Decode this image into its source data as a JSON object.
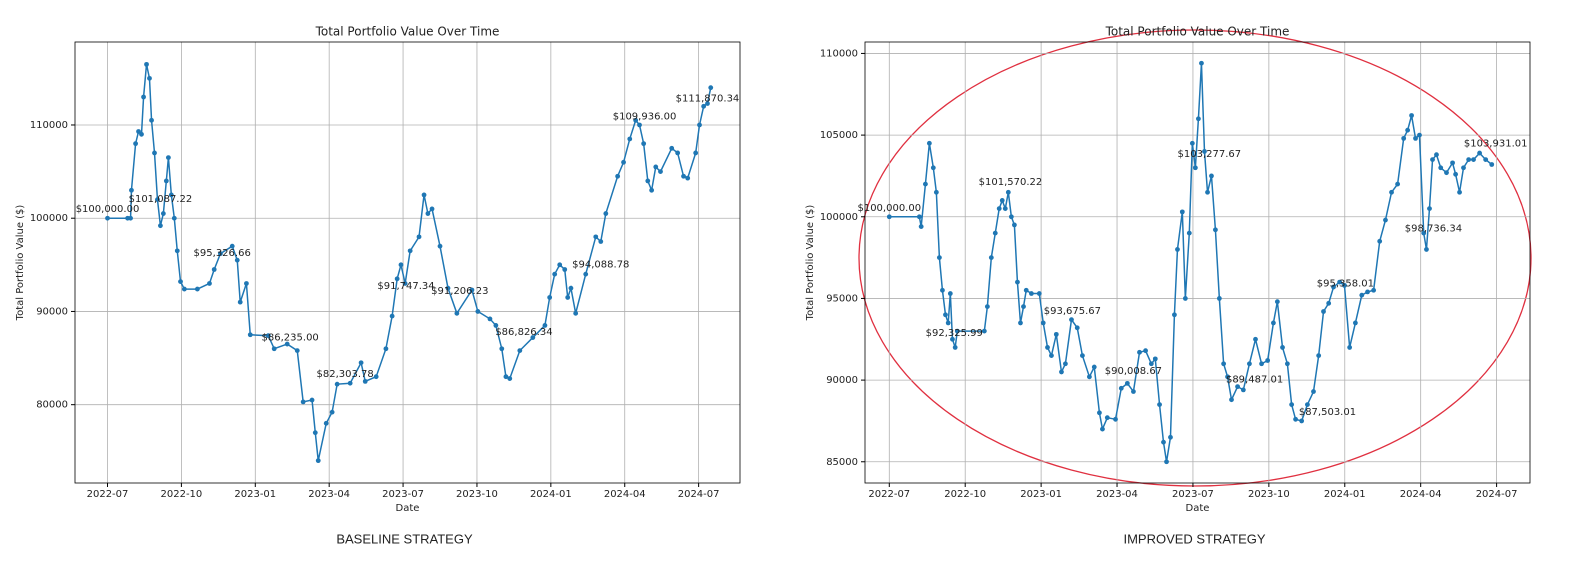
{
  "chart_data": [
    {
      "type": "line",
      "title": "Total Portfolio Value Over Time",
      "xlabel": "Date",
      "ylabel": "Total Portfolio Value ($)",
      "caption": "BASELINE STRATEGY",
      "color": "#1f77b4",
      "grid": true,
      "xlim": [
        2022.39,
        2024.64
      ],
      "ylim": [
        71600,
        118900
      ],
      "xticks": [
        {
          "value": 2022.5,
          "label": "2022-07"
        },
        {
          "value": 2022.75,
          "label": "2022-10"
        },
        {
          "value": 2023,
          "label": "2023-01"
        },
        {
          "value": 2023.25,
          "label": "2023-04"
        },
        {
          "value": 2023.5,
          "label": "2023-07"
        },
        {
          "value": 2023.75,
          "label": "2023-10"
        },
        {
          "value": 2024,
          "label": "2024-01"
        },
        {
          "value": 2024.25,
          "label": "2024-04"
        },
        {
          "value": 2024.5,
          "label": "2024-07"
        }
      ],
      "yticks": [
        80000,
        90000,
        100000,
        110000
      ],
      "x": [
        2022.5,
        2022.568,
        2022.578,
        2022.581,
        2022.595,
        2022.605,
        2022.615,
        2022.622,
        2022.632,
        2022.642,
        2022.649,
        2022.659,
        2022.669,
        2022.679,
        2022.689,
        2022.699,
        2022.706,
        2022.716,
        2022.726,
        2022.736,
        2022.747,
        2022.76,
        2022.804,
        2022.845,
        2022.861,
        2022.882,
        2022.922,
        2022.939,
        2022.949,
        2022.97,
        2022.983,
        2023.044,
        2023.064,
        2023.108,
        2023.142,
        2023.162,
        2023.192,
        2023.203,
        2023.213,
        2023.24,
        2023.26,
        2023.277,
        2023.321,
        2023.358,
        2023.372,
        2023.409,
        2023.442,
        2023.463,
        2023.48,
        2023.493,
        2023.507,
        2023.524,
        2023.554,
        2023.571,
        2023.584,
        2023.598,
        2023.625,
        2023.652,
        2023.682,
        2023.733,
        2023.753,
        2023.794,
        2023.814,
        2023.834,
        2023.848,
        2023.861,
        2023.895,
        2023.939,
        2023.98,
        2023.996,
        2024.013,
        2024.03,
        2024.047,
        2024.057,
        2024.068,
        2024.084,
        2024.118,
        2024.152,
        2024.169,
        2024.186,
        2024.226,
        2024.246,
        2024.267,
        2024.287,
        2024.3,
        2024.314,
        2024.328,
        2024.341,
        2024.355,
        2024.371,
        2024.409,
        2024.429,
        2024.449,
        2024.463,
        2024.49,
        2024.503,
        2024.517,
        2024.53,
        2024.541
      ],
      "values": [
        100000,
        100000,
        100000,
        103000,
        108000,
        109300,
        109000,
        113000,
        116500,
        115000,
        110500,
        107000,
        102000,
        99200,
        100500,
        104000,
        106500,
        102500,
        100000,
        96500,
        93200,
        92400,
        92400,
        93000,
        94500,
        96200,
        97000,
        95500,
        91000,
        93000,
        87500,
        87400,
        86000,
        86500,
        85800,
        80300,
        80500,
        77000,
        74000,
        78000,
        79200,
        82200,
        82300,
        84500,
        82500,
        83000,
        86000,
        89500,
        93500,
        95000,
        93000,
        96500,
        98000,
        102500,
        100500,
        101000,
        97000,
        92500,
        89800,
        92300,
        90000,
        89200,
        88500,
        86000,
        83000,
        82800,
        85800,
        87200,
        88500,
        91500,
        94000,
        95000,
        94500,
        91500,
        92500,
        89800,
        94000,
        98000,
        97500,
        100500,
        104500,
        106000,
        108500,
        110500,
        110000,
        108000,
        104000,
        103000,
        105500,
        105000,
        107500,
        107000,
        104500,
        104300,
        107000,
        110000,
        112000,
        112300,
        114000
      ],
      "annotations": [
        {
          "x": 2022.5,
          "y": 100000,
          "label": "$100,000.00"
        },
        {
          "x": 2022.679,
          "y": 101087.22,
          "label": "$101,087.22"
        },
        {
          "x": 2022.888,
          "y": 95326.66,
          "label": "$95,326.66"
        },
        {
          "x": 2023.118,
          "y": 86235,
          "label": "$86,235.00"
        },
        {
          "x": 2023.304,
          "y": 82303.78,
          "label": "$82,303.78"
        },
        {
          "x": 2023.51,
          "y": 91747.34,
          "label": "$91,747.34"
        },
        {
          "x": 2023.692,
          "y": 91206.23,
          "label": "$91,206.23"
        },
        {
          "x": 2023.909,
          "y": 86826.34,
          "label": "$86,826.34"
        },
        {
          "x": 2024.169,
          "y": 94088.78,
          "label": "$94,088.78"
        },
        {
          "x": 2024.317,
          "y": 109936,
          "label": "$109,936.00"
        },
        {
          "x": 2024.53,
          "y": 111870.34,
          "label": "$111,870.34"
        }
      ]
    },
    {
      "type": "line",
      "title": "Total Portfolio Value Over Time",
      "xlabel": "Date",
      "ylabel": "Total Portfolio Value ($)",
      "caption": "IMPROVED STRATEGY",
      "color": "#1f77b4",
      "grid": true,
      "xlim": [
        2022.42,
        2024.61
      ],
      "ylim": [
        83700,
        110700
      ],
      "xticks": [
        {
          "value": 2022.5,
          "label": "2022-07"
        },
        {
          "value": 2022.75,
          "label": "2022-10"
        },
        {
          "value": 2023,
          "label": "2023-01"
        },
        {
          "value": 2023.25,
          "label": "2023-04"
        },
        {
          "value": 2023.5,
          "label": "2023-07"
        },
        {
          "value": 2023.75,
          "label": "2023-10"
        },
        {
          "value": 2024,
          "label": "2024-01"
        },
        {
          "value": 2024.25,
          "label": "2024-04"
        },
        {
          "value": 2024.5,
          "label": "2024-07"
        }
      ],
      "yticks": [
        85000,
        90000,
        95000,
        100000,
        105000,
        110000
      ],
      "x": [
        2022.5,
        2022.599,
        2022.605,
        2022.619,
        2022.632,
        2022.645,
        2022.655,
        2022.665,
        2022.675,
        2022.685,
        2022.694,
        2022.701,
        2022.708,
        2022.717,
        2022.724,
        2022.813,
        2022.823,
        2022.836,
        2022.849,
        2022.862,
        2022.872,
        2022.882,
        2022.892,
        2022.902,
        2022.912,
        2022.922,
        2022.932,
        2022.942,
        2022.951,
        2022.968,
        2022.994,
        2023.007,
        2023.021,
        2023.034,
        2023.05,
        2023.067,
        2023.08,
        2023.1,
        2023.119,
        2023.136,
        2023.159,
        2023.175,
        2023.192,
        2023.202,
        2023.218,
        2023.245,
        2023.264,
        2023.284,
        2023.304,
        2023.324,
        2023.344,
        2023.363,
        2023.376,
        2023.39,
        2023.403,
        2023.413,
        2023.426,
        2023.439,
        2023.449,
        2023.465,
        2023.475,
        2023.488,
        2023.498,
        2023.508,
        2023.518,
        2023.528,
        2023.538,
        2023.548,
        2023.561,
        2023.574,
        2023.587,
        2023.601,
        2023.614,
        2023.627,
        2023.647,
        2023.666,
        2023.686,
        2023.706,
        2023.726,
        2023.746,
        2023.765,
        2023.778,
        2023.795,
        2023.811,
        2023.825,
        2023.838,
        2023.858,
        2023.877,
        2023.897,
        2023.914,
        2023.93,
        2023.947,
        2023.963,
        2023.983,
        2023.999,
        2024.016,
        2024.035,
        2024.056,
        2024.075,
        2024.095,
        2024.115,
        2024.134,
        2024.154,
        2024.174,
        2024.194,
        2024.207,
        2024.22,
        2024.233,
        2024.246,
        2024.26,
        2024.269,
        2024.279,
        2024.289,
        2024.302,
        2024.316,
        2024.335,
        2024.355,
        2024.365,
        2024.378,
        2024.391,
        2024.408,
        2024.424,
        2024.444,
        2024.464,
        2024.484
      ],
      "values": [
        100000,
        100000,
        99400,
        102000,
        104500,
        103000,
        101500,
        97500,
        95500,
        94000,
        93500,
        95300,
        92500,
        92000,
        93000,
        93000,
        94500,
        97500,
        99000,
        100500,
        101000,
        100500,
        101500,
        100000,
        99500,
        96000,
        93500,
        94500,
        95500,
        95300,
        95300,
        93500,
        92000,
        91500,
        92800,
        90500,
        91000,
        93700,
        93200,
        91500,
        90200,
        90800,
        88000,
        87000,
        87700,
        87600,
        89500,
        89800,
        89300,
        91700,
        91800,
        91000,
        91300,
        88500,
        86200,
        85000,
        86500,
        94000,
        98000,
        100300,
        95000,
        99000,
        104500,
        103000,
        106000,
        109400,
        104000,
        101500,
        102500,
        99200,
        95000,
        91000,
        90200,
        88800,
        89600,
        89400,
        91000,
        92500,
        91000,
        91200,
        93500,
        94800,
        92000,
        91000,
        88500,
        87600,
        87500,
        88500,
        89300,
        91500,
        94200,
        94700,
        95700,
        96000,
        95800,
        92000,
        93500,
        95200,
        95400,
        95500,
        98500,
        99800,
        101500,
        102000,
        104800,
        105300,
        106200,
        104800,
        105000,
        99000,
        98000,
        100500,
        103500,
        103800,
        103000,
        102700,
        103300,
        102600,
        101500,
        103000,
        103500,
        103500,
        103900,
        103500,
        103200
      ],
      "annotations": [
        {
          "x": 2022.5,
          "y": 100000,
          "label": "$100,000.00"
        },
        {
          "x": 2022.714,
          "y": 92325.99,
          "label": "$92,325.99"
        },
        {
          "x": 2022.899,
          "y": 101570.22,
          "label": "$101,570.22"
        },
        {
          "x": 2023.103,
          "y": 93675.67,
          "label": "$93,675.67"
        },
        {
          "x": 2023.304,
          "y": 90008.67,
          "label": "$90,008.67"
        },
        {
          "x": 2023.554,
          "y": 103277.67,
          "label": "$103,277.67"
        },
        {
          "x": 2023.703,
          "y": 89487.01,
          "label": "$89,487.01"
        },
        {
          "x": 2023.943,
          "y": 87503.01,
          "label": "$87,503.01"
        },
        {
          "x": 2024.002,
          "y": 95358.01,
          "label": "$95,358.01"
        },
        {
          "x": 2024.292,
          "y": 98736.34,
          "label": "$98,736.34"
        },
        {
          "x": 2024.497,
          "y": 103931.01,
          "label": "$103,931.01"
        }
      ]
    }
  ]
}
